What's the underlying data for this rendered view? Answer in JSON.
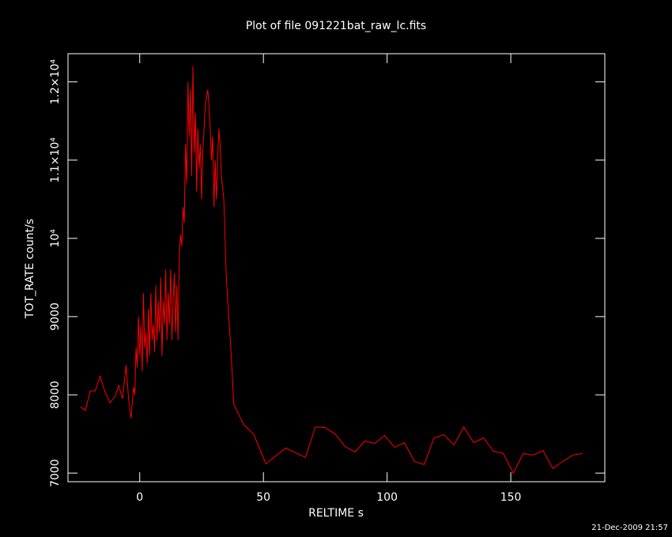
{
  "chart_data": {
    "type": "line",
    "title": "Plot of file 091221bat_raw_lc.fits",
    "x_label": "RELTIME  s",
    "y_label": "TOT_RATE  count/s",
    "footer": "21-Dec-2009 21:57",
    "xlim": [
      -29,
      188
    ],
    "ylim": [
      6890,
      12360
    ],
    "xticks": [
      0,
      50,
      100,
      150
    ],
    "yticks": [
      7000,
      8000,
      9000,
      {
        "value": 10000,
        "label": "10⁴"
      },
      {
        "value": 11000,
        "label": "1.1×10⁴"
      },
      {
        "value": 12000,
        "label": "1.2×10⁴"
      }
    ],
    "x": [
      -24,
      -22,
      -20,
      -18,
      -16,
      -14,
      -12,
      -10,
      -8.5,
      -7,
      -5.5,
      -4.5,
      -3.5,
      -2.5,
      -2,
      -1.5,
      -1,
      -0.5,
      0,
      0.5,
      1,
      1.5,
      2,
      2.5,
      3,
      3.5,
      4,
      4.5,
      5,
      5.5,
      6,
      6.5,
      7,
      7.5,
      8,
      8.5,
      9,
      9.5,
      10,
      10.5,
      11,
      11.5,
      12,
      12.5,
      13,
      13.5,
      14,
      14.5,
      15,
      15.5,
      16,
      16.5,
      17,
      17.5,
      18,
      18.5,
      19,
      19.5,
      20,
      20.5,
      21,
      21.5,
      22,
      22.5,
      23,
      23.5,
      24,
      24.5,
      25,
      25.5,
      26,
      26.5,
      27,
      27.5,
      28,
      28.5,
      29,
      29.5,
      30,
      30.5,
      31,
      31.5,
      32,
      32.5,
      33,
      34,
      35,
      36,
      37,
      38,
      42,
      46,
      51,
      59,
      67,
      71,
      75,
      79,
      83,
      87,
      91,
      95,
      99,
      103,
      107,
      111,
      115,
      119,
      123,
      127,
      131,
      135,
      139,
      143,
      147,
      151,
      155,
      159,
      163,
      167,
      171,
      175,
      179
    ],
    "series": [
      {
        "name": "TOT_RATE",
        "color": "#ff0000",
        "values": [
          7850,
          7800,
          8050,
          8050,
          8240,
          8030,
          7900,
          7980,
          8120,
          7950,
          8380,
          7950,
          7700,
          8100,
          8000,
          8600,
          8350,
          9000,
          8500,
          8900,
          8300,
          9300,
          8600,
          8800,
          8400,
          9100,
          8500,
          9300,
          8700,
          8900,
          8550,
          9400,
          8700,
          9200,
          8800,
          9500,
          8500,
          9200,
          8900,
          9600,
          8700,
          9300,
          8900,
          9600,
          8700,
          9200,
          9550,
          8800,
          9400,
          8700,
          9800,
          10050,
          9900,
          10400,
          10200,
          11200,
          10700,
          12000,
          11300,
          11900,
          10800,
          12200,
          11100,
          11600,
          10600,
          11400,
          10900,
          11200,
          10500,
          11100,
          11400,
          11700,
          11800,
          11900,
          11700,
          11400,
          11000,
          11300,
          10400,
          11000,
          10500,
          11000,
          11400,
          11200,
          10800,
          10500,
          9500,
          9000,
          8500,
          7880,
          7620,
          7500,
          7120,
          7320,
          7200,
          7590,
          7580,
          7500,
          7340,
          7270,
          7410,
          7380,
          7480,
          7330,
          7390,
          7150,
          7110,
          7450,
          7490,
          7360,
          7590,
          7390,
          7450,
          7280,
          7250,
          7000,
          7250,
          7230,
          7290,
          7060,
          7150,
          7230,
          7250
        ]
      }
    ]
  }
}
